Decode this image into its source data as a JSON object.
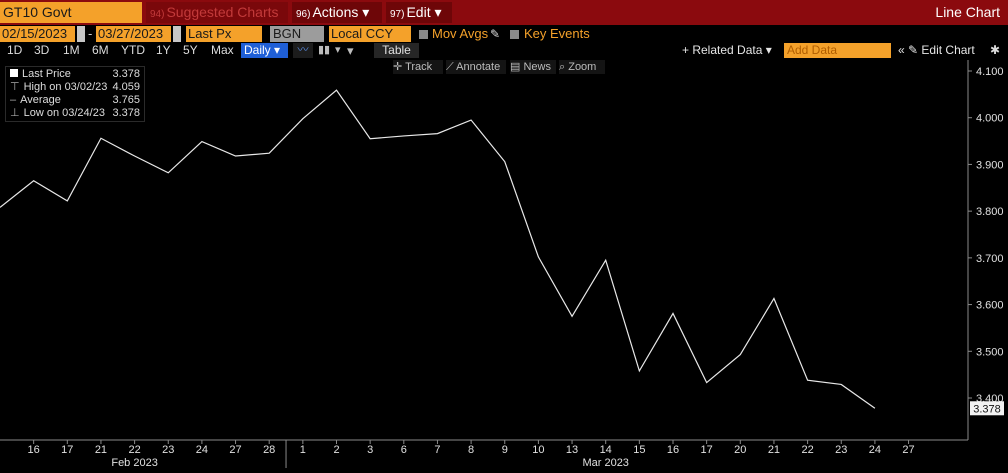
{
  "toolbar": {
    "ticker": "GT10 Govt",
    "suggested": "Suggested Charts",
    "suggested_num": "94)",
    "actions": "Actions ▾",
    "actions_num": "96)",
    "edit": "Edit ▾",
    "edit_num": "97)",
    "chart_type": "Line Chart"
  },
  "settings": {
    "start_date": "02/15/2023",
    "end_date": "03/27/2023",
    "field": "Last Px",
    "source": "BGN",
    "currency": "Local CCY",
    "mov_avgs": "Mov Avgs",
    "key_events": "Key Events"
  },
  "periods": [
    "1D",
    "3D",
    "1M",
    "6M",
    "YTD",
    "1Y",
    "5Y",
    "Max"
  ],
  "frequency": "Daily ▾",
  "table_label": "Table",
  "related_data": "+ Related Data ▾",
  "add_data_placeholder": "Add Data",
  "edit_chart": "✎ Edit Chart",
  "chart_tools": [
    "Track",
    "Annotate",
    "News",
    "Zoom"
  ],
  "legend": {
    "last_label": "Last Price",
    "last_value": "3.378",
    "high_label": "High on 03/02/23",
    "high_value": "4.059",
    "avg_label": "Average",
    "avg_value": "3.765",
    "low_label": "Low on 03/24/23",
    "low_value": "3.378"
  },
  "chart_data": {
    "type": "line",
    "x": [
      "Feb 15",
      "16",
      "17",
      "21",
      "22",
      "23",
      "24",
      "27",
      "28",
      "1",
      "2",
      "3",
      "6",
      "7",
      "8",
      "9",
      "10",
      "13",
      "14",
      "15",
      "16",
      "17",
      "20",
      "21",
      "22",
      "23",
      "24"
    ],
    "x_month_labels": [
      {
        "label": "Feb 2023",
        "at": "22"
      },
      {
        "label": "Mar 2023",
        "at": "14"
      }
    ],
    "y": [
      3.808,
      3.865,
      3.822,
      3.956,
      3.918,
      3.882,
      3.949,
      3.918,
      3.924,
      3.998,
      4.059,
      3.955,
      3.961,
      3.966,
      3.995,
      3.906,
      3.702,
      3.575,
      3.695,
      3.458,
      3.581,
      3.433,
      3.493,
      3.613,
      3.438,
      3.429,
      3.378
    ],
    "tick_labels": [
      "16",
      "17",
      "21",
      "22",
      "23",
      "24",
      "27",
      "28",
      "1",
      "2",
      "3",
      "6",
      "7",
      "8",
      "9",
      "10",
      "13",
      "14",
      "15",
      "16",
      "17",
      "20",
      "21",
      "22",
      "23",
      "24",
      "27"
    ],
    "y_ticks": [
      "3.400",
      "3.500",
      "3.600",
      "3.700",
      "3.800",
      "3.900",
      "4.000",
      "4.100"
    ],
    "ylim": [
      3.3,
      4.1
    ],
    "last_label": "3.378",
    "line_color": "#e8e8e8",
    "background": "#000000"
  }
}
